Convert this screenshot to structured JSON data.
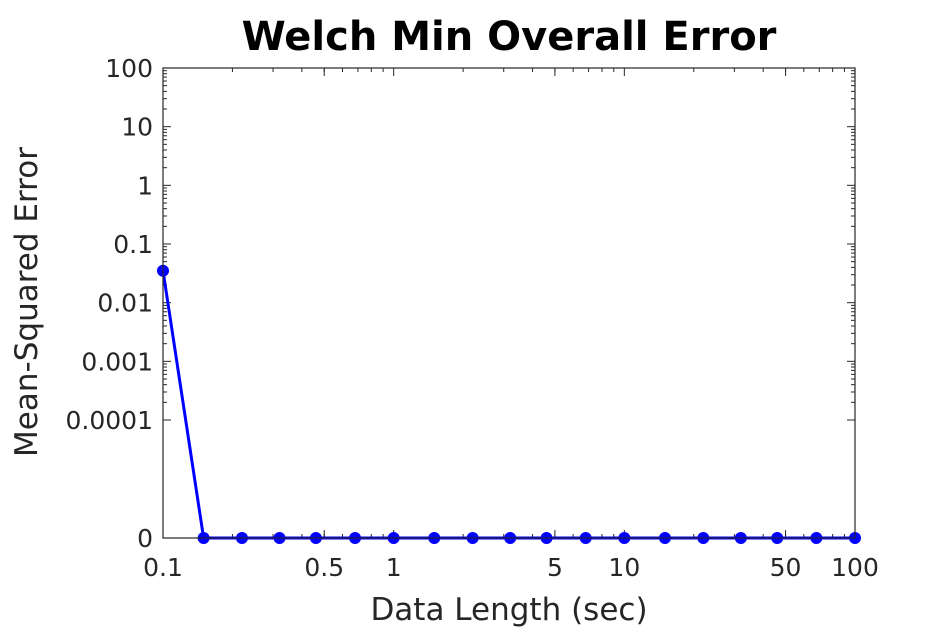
{
  "chart_data": {
    "type": "line",
    "title": "Welch Min Overall Error",
    "xlabel": "Data Length (sec)",
    "ylabel": "Mean-Squared Error",
    "x_scale": "log",
    "y_scale": "symlog",
    "xlim": [
      0.1,
      100
    ],
    "x_ticks": [
      0.1,
      0.5,
      1,
      5,
      10,
      50,
      100
    ],
    "x_tick_labels": [
      "0.1",
      "0.5",
      "1",
      "5",
      "10",
      "50",
      "100"
    ],
    "y_ticks": [
      0,
      0.0001,
      0.001,
      0.01,
      0.1,
      1,
      10,
      100
    ],
    "y_tick_labels": [
      "0",
      "0.0001",
      "0.001",
      "0.01",
      "0.1",
      "1",
      "10",
      "100"
    ],
    "grid": false,
    "series": [
      {
        "name": "Welch min overall MSE",
        "color": "#0000ff",
        "marker": "circle",
        "x": [
          0.1,
          0.15,
          0.22,
          0.32,
          0.46,
          0.68,
          1,
          1.5,
          2.2,
          3.2,
          4.6,
          6.8,
          10,
          15,
          22,
          32,
          46,
          68,
          100
        ],
        "y": [
          0.035,
          0,
          0,
          0,
          0,
          0,
          0,
          0,
          0,
          0,
          0,
          0,
          0,
          0,
          0,
          0,
          0,
          0,
          0
        ]
      }
    ]
  }
}
